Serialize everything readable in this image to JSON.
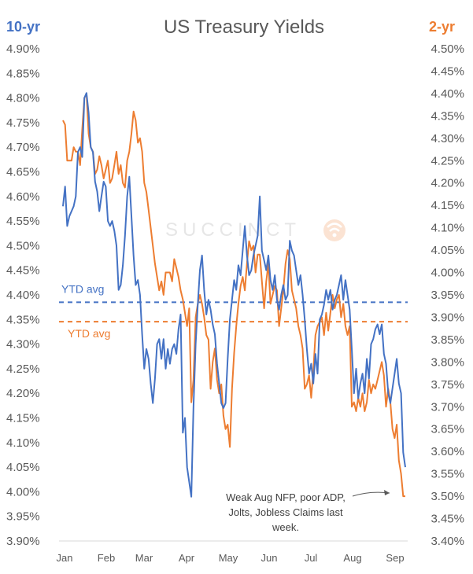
{
  "chart_data": {
    "type": "line",
    "title": "US Treasury Yields",
    "left_axis_title": "10-yr",
    "right_axis_title": "2-yr",
    "watermark": "SUCCINCT",
    "colors": {
      "ten_year": "#4472c4",
      "two_year": "#ed7d31"
    },
    "y_left": {
      "min": 3.9,
      "max": 4.9,
      "ticks": [
        "4.90%",
        "4.85%",
        "4.80%",
        "4.75%",
        "4.70%",
        "4.65%",
        "4.60%",
        "4.55%",
        "4.50%",
        "4.45%",
        "4.40%",
        "4.35%",
        "4.30%",
        "4.25%",
        "4.20%",
        "4.15%",
        "4.10%",
        "4.05%",
        "4.00%",
        "3.95%",
        "3.90%"
      ]
    },
    "y_right": {
      "min": 3.4,
      "max": 4.5,
      "ticks": [
        "4.50%",
        "4.45%",
        "4.40%",
        "4.35%",
        "4.30%",
        "4.25%",
        "4.20%",
        "4.15%",
        "4.10%",
        "4.05%",
        "4.00%",
        "3.95%",
        "3.90%",
        "3.85%",
        "3.80%",
        "3.75%",
        "3.70%",
        "3.65%",
        "3.60%",
        "3.55%",
        "3.50%",
        "3.45%",
        "3.40%"
      ]
    },
    "x_ticks": [
      "Jan",
      "Feb",
      "Mar",
      "Apr",
      "May",
      "Jun",
      "Jul",
      "Aug",
      "Sep"
    ],
    "ytd_avg_10yr": {
      "label": "YTD avg",
      "value": 4.385
    },
    "ytd_avg_2yr": {
      "label": "YTD avg",
      "value": 3.89
    },
    "annotation": {
      "lines": [
        "Weak Aug NFP, poor ADP,",
        "Jolts, Jobless Claims last",
        "week."
      ]
    },
    "series": [
      {
        "name": "10-yr",
        "axis": "left",
        "values": [
          4.58,
          4.62,
          4.54,
          4.56,
          4.57,
          4.58,
          4.6,
          4.69,
          4.7,
          4.68,
          4.8,
          4.81,
          4.77,
          4.7,
          4.69,
          4.63,
          4.61,
          4.57,
          4.6,
          4.63,
          4.62,
          4.55,
          4.54,
          4.55,
          4.53,
          4.5,
          4.41,
          4.42,
          4.46,
          4.52,
          4.6,
          4.64,
          4.56,
          4.48,
          4.42,
          4.43,
          4.4,
          4.32,
          4.25,
          4.29,
          4.27,
          4.22,
          4.18,
          4.23,
          4.3,
          4.31,
          4.27,
          4.31,
          4.25,
          4.29,
          4.26,
          4.29,
          4.3,
          4.28,
          4.33,
          4.36,
          4.12,
          4.15,
          4.05,
          4.02,
          3.99,
          4.17,
          4.3,
          4.38,
          4.45,
          4.48,
          4.41,
          4.36,
          4.39,
          4.37,
          4.34,
          4.32,
          4.26,
          4.22,
          4.18,
          4.17,
          4.18,
          4.27,
          4.35,
          4.39,
          4.43,
          4.41,
          4.46,
          4.44,
          4.49,
          4.54,
          4.48,
          4.44,
          4.45,
          4.48,
          4.5,
          4.52,
          4.6,
          4.49,
          4.47,
          4.45,
          4.48,
          4.43,
          4.41,
          4.44,
          4.39,
          4.37,
          4.4,
          4.42,
          4.39,
          4.4,
          4.51,
          4.49,
          4.48,
          4.45,
          4.42,
          4.44,
          4.4,
          4.35,
          4.29,
          4.24,
          4.26,
          4.22,
          4.28,
          4.24,
          4.35,
          4.36,
          4.38,
          4.41,
          4.39,
          4.41,
          4.37,
          4.39,
          4.4,
          4.42,
          4.44,
          4.39,
          4.43,
          4.4,
          4.37,
          4.29,
          4.2,
          4.25,
          4.19,
          4.22,
          4.24,
          4.2,
          4.27,
          4.23,
          4.3,
          4.31,
          4.33,
          4.34,
          4.32,
          4.34,
          4.28,
          4.26,
          4.2,
          4.18,
          4.21,
          4.24,
          4.27,
          4.22,
          4.2,
          4.08,
          4.05
        ]
      },
      {
        "name": "2-yr",
        "axis": "right",
        "values": [
          4.34,
          4.33,
          4.25,
          4.25,
          4.25,
          4.28,
          4.27,
          4.27,
          4.24,
          4.32,
          4.39,
          4.4,
          4.31,
          4.28,
          4.27,
          4.22,
          4.23,
          4.26,
          4.24,
          4.21,
          4.23,
          4.25,
          4.2,
          4.21,
          4.24,
          4.27,
          4.22,
          4.24,
          4.2,
          4.19,
          4.25,
          4.27,
          4.31,
          4.36,
          4.34,
          4.29,
          4.3,
          4.27,
          4.2,
          4.18,
          4.14,
          4.1,
          4.06,
          4.02,
          3.99,
          3.96,
          3.98,
          3.95,
          4.0,
          4.0,
          4.0,
          3.98,
          4.03,
          4.01,
          3.99,
          3.96,
          3.94,
          3.91,
          3.88,
          3.92,
          3.71,
          3.76,
          3.9,
          3.93,
          3.95,
          3.93,
          3.9,
          3.86,
          3.85,
          3.74,
          3.8,
          3.83,
          3.76,
          3.73,
          3.75,
          3.68,
          3.65,
          3.66,
          3.61,
          3.74,
          3.82,
          3.88,
          3.93,
          3.97,
          3.99,
          3.96,
          4.02,
          4.07,
          4.05,
          4.06,
          4.0,
          4.04,
          4.04,
          3.98,
          3.92,
          3.98,
          4.02,
          3.93,
          3.95,
          3.97,
          3.96,
          3.88,
          3.92,
          3.96,
          4.02,
          4.05,
          4.03,
          3.96,
          3.94,
          3.92,
          3.88,
          3.86,
          3.83,
          3.74,
          3.75,
          3.77,
          3.72,
          3.78,
          3.86,
          3.88,
          3.89,
          3.9,
          3.86,
          3.91,
          3.87,
          3.91,
          3.95,
          3.92,
          3.94,
          3.95,
          3.9,
          3.93,
          3.88,
          3.86,
          3.88,
          3.7,
          3.71,
          3.69,
          3.72,
          3.7,
          3.73,
          3.69,
          3.71,
          3.76,
          3.73,
          3.75,
          3.74,
          3.76,
          3.78,
          3.8,
          3.77,
          3.7,
          3.74,
          3.71,
          3.65,
          3.63,
          3.66,
          3.58,
          3.55,
          3.5,
          3.5
        ]
      }
    ]
  }
}
